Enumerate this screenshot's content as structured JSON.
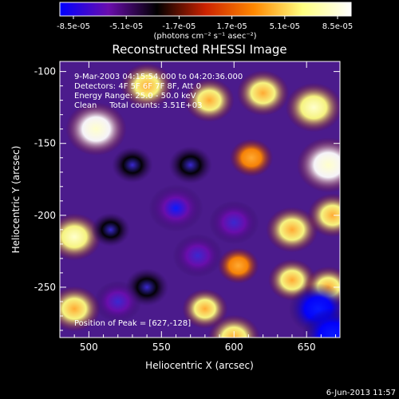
{
  "chart_data": {
    "type": "heatmap",
    "title": "Reconstructed RHESSI Image",
    "xlabel": "Heliocentric X (arcsec)",
    "ylabel": "Heliocentric Y (arcsec)",
    "xlim": [
      480,
      673
    ],
    "ylim": [
      -285,
      -93
    ],
    "x_ticks": [
      500,
      550,
      600,
      650
    ],
    "y_ticks": [
      -100,
      -150,
      -200,
      -250
    ],
    "annotations": [
      "9-Mar-2003 04:15:54.000 to 04:20:36.000",
      "Detectors: 4F 5F 6F 7F 8F, Att 0",
      "Energy Range: 25.0 - 50.0 keV",
      "Clean     Total counts: 3.51E+03"
    ],
    "peak_label": "Position of Peak = [627,-128]",
    "colorbar": {
      "tick_labels": [
        "-8.5e-05",
        "-5.1e-05",
        "-1.7e-05",
        "1.7e-05",
        "5.1e-05",
        "8.5e-05"
      ],
      "range": [
        -8.5e-05,
        8.5e-05
      ],
      "units_label": "(photons cm⁻² s⁻¹ asec⁻²)",
      "colors": [
        "#0000ff",
        "#6a0dad",
        "#000000",
        "#cc2200",
        "#ff8800",
        "#ffff80",
        "#ffffff"
      ]
    },
    "blobs": [
      {
        "x": 505,
        "y": -140,
        "value": 8e-05
      },
      {
        "x": 540,
        "y": -110,
        "value": 6e-05
      },
      {
        "x": 583,
        "y": -120,
        "value": 5.5e-05
      },
      {
        "x": 620,
        "y": -115,
        "value": 6e-05
      },
      {
        "x": 655,
        "y": -125,
        "value": 7e-05
      },
      {
        "x": 665,
        "y": -165,
        "value": 8.5e-05
      },
      {
        "x": 612,
        "y": -160,
        "value": 4e-05
      },
      {
        "x": 530,
        "y": -165,
        "value": -3.5e-05
      },
      {
        "x": 570,
        "y": -165,
        "value": -4e-05
      },
      {
        "x": 560,
        "y": -195,
        "value": -6.5e-05
      },
      {
        "x": 600,
        "y": -205,
        "value": -5.5e-05
      },
      {
        "x": 490,
        "y": -215,
        "value": 6.5e-05
      },
      {
        "x": 515,
        "y": -210,
        "value": -3e-05
      },
      {
        "x": 640,
        "y": -210,
        "value": 6e-05
      },
      {
        "x": 668,
        "y": -200,
        "value": 5.5e-05
      },
      {
        "x": 640,
        "y": -245,
        "value": 5e-05
      },
      {
        "x": 665,
        "y": -250,
        "value": 5e-05
      },
      {
        "x": 540,
        "y": -250,
        "value": -4e-05
      },
      {
        "x": 520,
        "y": -260,
        "value": -5e-05
      },
      {
        "x": 490,
        "y": -265,
        "value": 6e-05
      },
      {
        "x": 580,
        "y": -265,
        "value": 4.5e-05
      },
      {
        "x": 600,
        "y": -285,
        "value": 6e-05
      },
      {
        "x": 658,
        "y": -265,
        "value": -7.5e-05
      },
      {
        "x": 575,
        "y": -228,
        "value": -5.5e-05
      },
      {
        "x": 668,
        "y": -283,
        "value": -8e-05
      },
      {
        "x": 603,
        "y": -235,
        "value": 3.5e-05
      }
    ]
  },
  "footer_timestamp": "6-Jun-2013 11:57"
}
